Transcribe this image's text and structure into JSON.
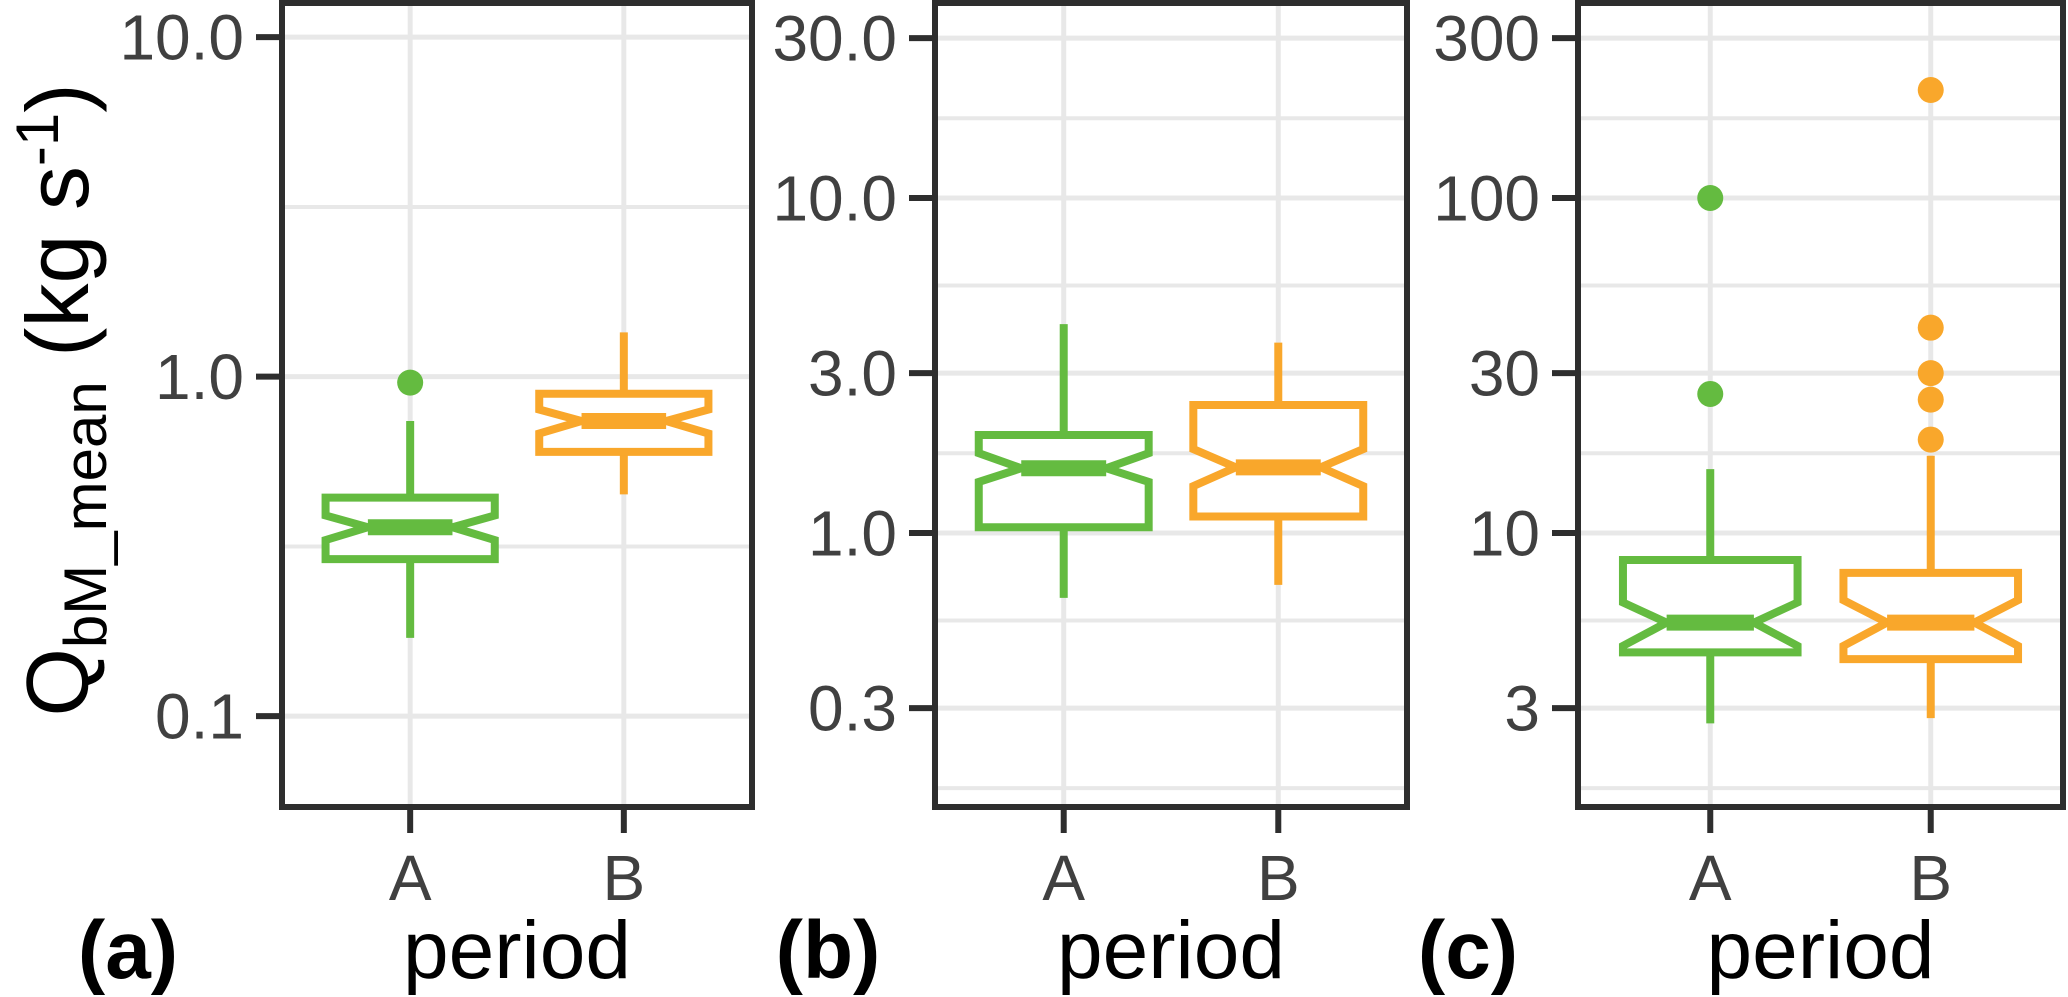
{
  "figure": {
    "background": "#ffffff",
    "y_axis_title": {
      "base": "Q",
      "subscript": "bM_mean",
      "unit_pre": " (kg s",
      "unit_sup": "-1",
      "unit_post": ")"
    },
    "x_axis_title": "period",
    "colors": {
      "A": "#64BB40",
      "B": "#F9A72B",
      "grid": "#E8E8E8",
      "panel_border": "#2E2E2E",
      "tick_mark": "#2E2E2E",
      "tick_text": "#404040",
      "title_text": "#000000"
    }
  },
  "chart_data": [
    {
      "type": "boxplot",
      "panel_label": "(a)",
      "xlabel": "period",
      "ylabel": "QbM_mean (kg s-1)",
      "yscale": "log10",
      "categories": [
        "A",
        "B"
      ],
      "yticks": [
        10.0,
        1.0,
        0.1
      ],
      "ytick_labels": [
        "10.0",
        "1.0",
        "0.1"
      ],
      "minor_gridlines": [
        3.16,
        0.316
      ],
      "ylim": [
        0.054,
        12.6
      ],
      "grid": true,
      "legend": false,
      "series": [
        {
          "category": "A",
          "color_key": "A",
          "whisker_low": 0.17,
          "q1": 0.29,
          "median": 0.36,
          "q3": 0.44,
          "whisker_high": 0.74,
          "notch_low": 0.33,
          "notch_high": 0.39,
          "outliers": [
            0.96
          ]
        },
        {
          "category": "B",
          "color_key": "B",
          "whisker_low": 0.45,
          "q1": 0.6,
          "median": 0.74,
          "q3": 0.89,
          "whisker_high": 1.35,
          "notch_low": 0.68,
          "notch_high": 0.8,
          "outliers": []
        }
      ]
    },
    {
      "type": "boxplot",
      "panel_label": "(b)",
      "xlabel": "period",
      "ylabel": "QbM_mean (kg s-1)",
      "yscale": "log10",
      "categories": [
        "A",
        "B"
      ],
      "yticks": [
        30.0,
        10.0,
        3.0,
        1.0,
        0.3
      ],
      "ytick_labels": [
        "30.0",
        "10.0",
        "3.0",
        "1.0",
        "0.3"
      ],
      "minor_gridlines": [
        17.3,
        5.48,
        1.73,
        0.548,
        0.173
      ],
      "ylim": [
        0.152,
        38.2
      ],
      "grid": true,
      "legend": false,
      "series": [
        {
          "category": "A",
          "color_key": "A",
          "whisker_low": 0.64,
          "q1": 1.04,
          "median": 1.56,
          "q3": 1.96,
          "whisker_high": 4.2,
          "notch_low": 1.42,
          "notch_high": 1.73,
          "outliers": []
        },
        {
          "category": "B",
          "color_key": "B",
          "whisker_low": 0.7,
          "q1": 1.12,
          "median": 1.57,
          "q3": 2.41,
          "whisker_high": 3.7,
          "notch_low": 1.38,
          "notch_high": 1.78,
          "outliers": []
        }
      ]
    },
    {
      "type": "boxplot",
      "panel_label": "(c)",
      "xlabel": "period",
      "ylabel": "QbM_mean (kg s-1)",
      "yscale": "log10",
      "categories": [
        "A",
        "B"
      ],
      "yticks": [
        300,
        100,
        30,
        10,
        3
      ],
      "ytick_labels": [
        "300",
        "100",
        "30",
        "10",
        "3"
      ],
      "minor_gridlines": [
        173,
        54.8,
        17.3,
        5.48,
        1.73
      ],
      "ylim": [
        1.52,
        382
      ],
      "grid": true,
      "legend": false,
      "series": [
        {
          "category": "A",
          "color_key": "A",
          "whisker_low": 2.7,
          "q1": 4.4,
          "median": 5.4,
          "q3": 8.3,
          "whisker_high": 15.5,
          "notch_low": 4.6,
          "notch_high": 6.2,
          "outliers": [
            100,
            26
          ]
        },
        {
          "category": "B",
          "color_key": "B",
          "whisker_low": 2.8,
          "q1": 4.2,
          "median": 5.4,
          "q3": 7.6,
          "whisker_high": 17,
          "notch_low": 4.6,
          "notch_high": 6.3,
          "outliers": [
            210,
            41,
            30,
            25,
            19
          ]
        }
      ]
    }
  ]
}
